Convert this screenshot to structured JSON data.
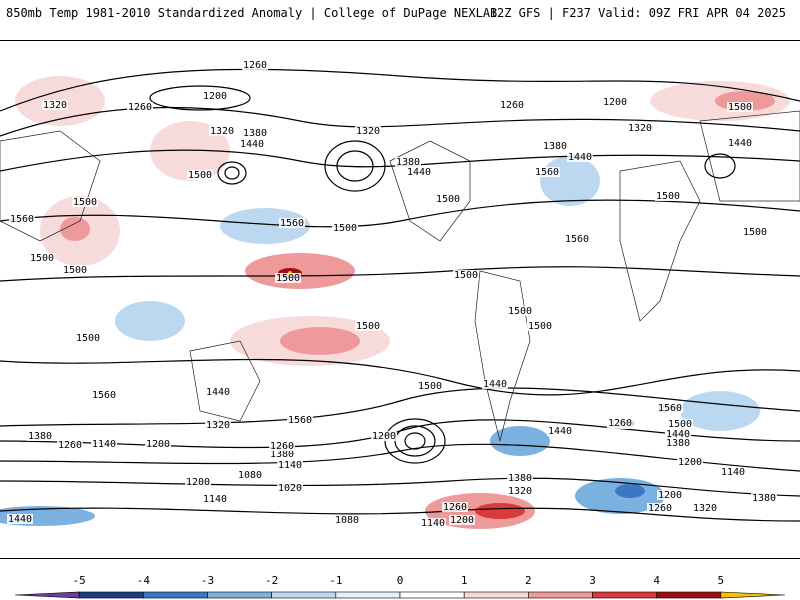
{
  "header": {
    "left_title": "850mb Temp 1981-2010 Standardized Anomaly | College of DuPage NEXLAB",
    "right_title": "12Z GFS | F237 Valid: 09Z FRI APR 04 2025"
  },
  "contour_labels": [
    "1260",
    "1320",
    "1200",
    "1260",
    "1320",
    "1380",
    "1440",
    "1320",
    "1260",
    "1200",
    "1500",
    "1320",
    "1440",
    "1500",
    "1560",
    "1500",
    "1560",
    "1500",
    "1380",
    "1440",
    "1500",
    "1380",
    "1440",
    "1560",
    "1500",
    "1500",
    "1500",
    "1500",
    "1560",
    "1500",
    "1500",
    "1500",
    "1500",
    "1500",
    "1500",
    "1560",
    "1440",
    "1440",
    "1500",
    "1560",
    "1500",
    "1440",
    "1320",
    "1200",
    "1260",
    "1380",
    "1440",
    "1260",
    "1380",
    "1200",
    "1140",
    "1380",
    "1140",
    "1260",
    "1080",
    "1200",
    "1140",
    "1020",
    "1080",
    "1140",
    "1200",
    "1260",
    "1320",
    "1380",
    "1440",
    "1500",
    "1560",
    "1260",
    "1140",
    "1200",
    "1200",
    "1260",
    "1320",
    "1380",
    "1440"
  ],
  "legend": {
    "ticks": [
      "-5",
      "-4",
      "-3",
      "-2",
      "-1",
      "0",
      "1",
      "2",
      "3",
      "4",
      "5"
    ],
    "colors": [
      "#6b3fa0",
      "#1f3d7a",
      "#3a78c4",
      "#7bb1e0",
      "#bcd8f0",
      "#e6f0f9",
      "#ffffff",
      "#f7dada",
      "#ee9a9a",
      "#d93a3a",
      "#9e1010",
      "#f2c200"
    ]
  }
}
